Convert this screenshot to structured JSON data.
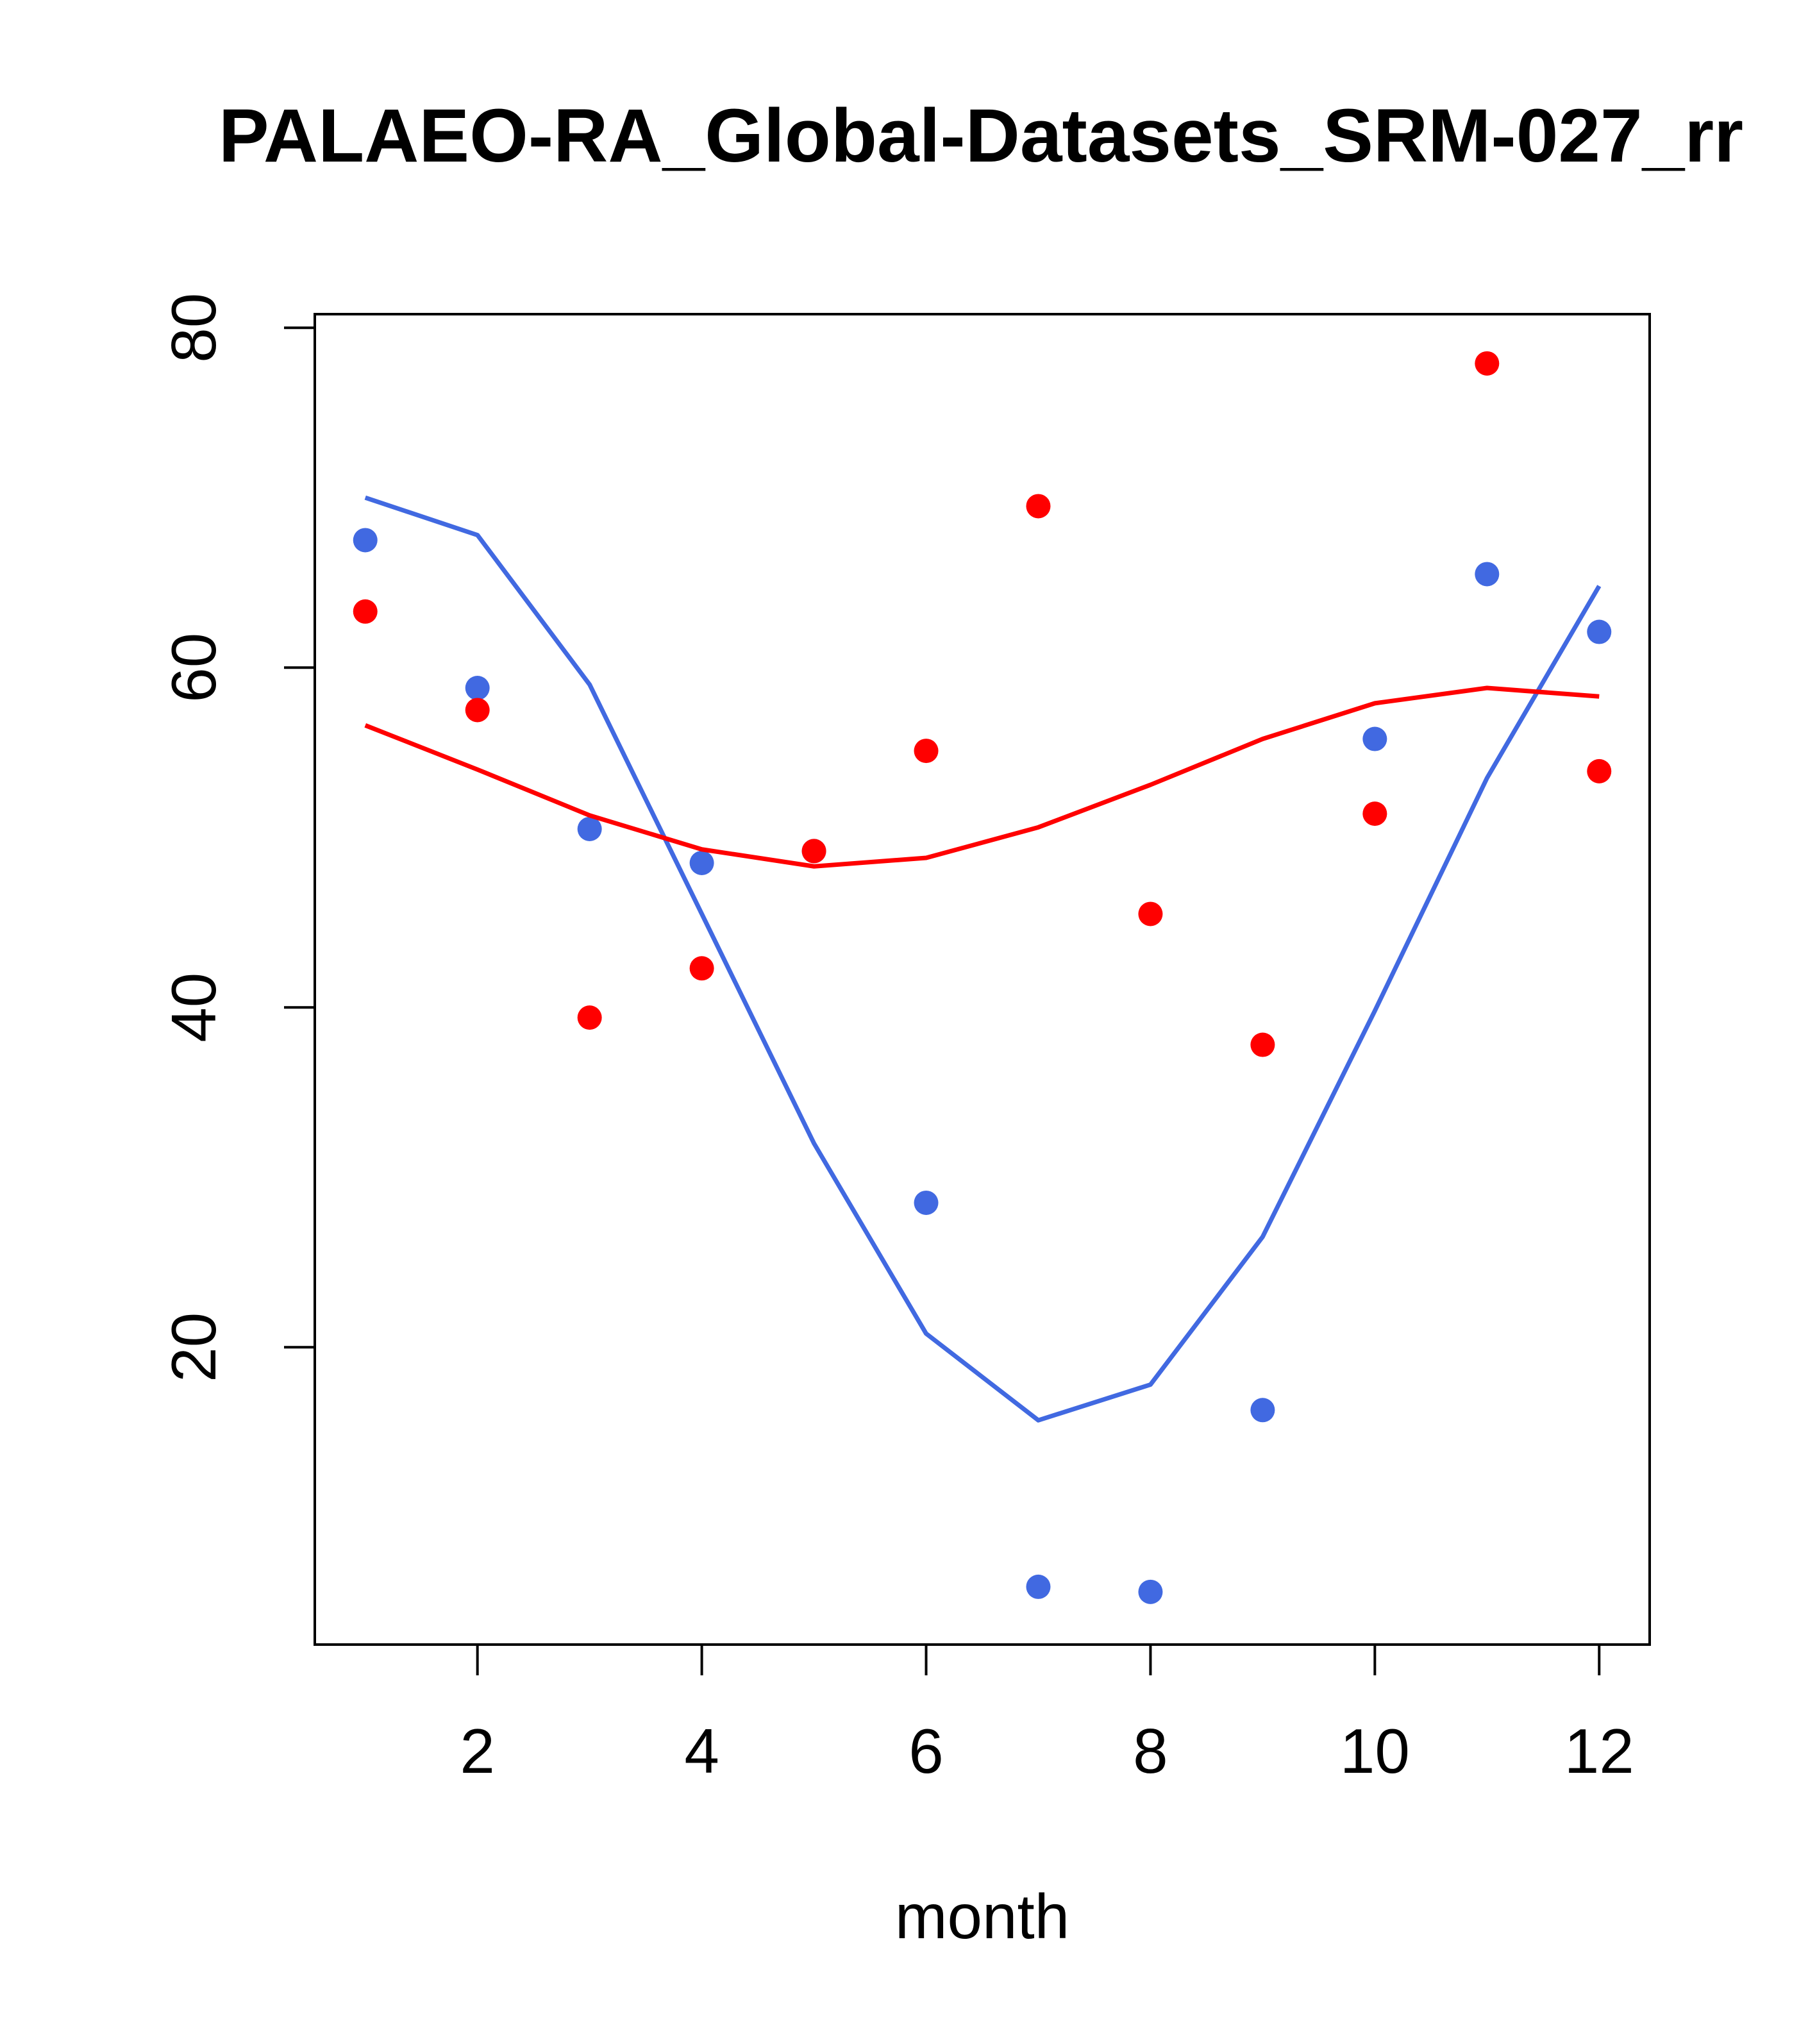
{
  "chart_data": {
    "type": "line",
    "title": "PALAEO-RA_Global-Datasets_SRM-027_rr",
    "xlabel": "month",
    "ylabel": "",
    "xlim": [
      0.55,
      12.45
    ],
    "ylim": [
      2.5,
      80.8
    ],
    "x_ticks": [
      2,
      4,
      6,
      8,
      10,
      12
    ],
    "y_ticks": [
      20,
      40,
      60,
      80
    ],
    "x": [
      1,
      2,
      3,
      4,
      5,
      6,
      7,
      8,
      9,
      10,
      11,
      12
    ],
    "series": [
      {
        "name": "blue points",
        "kind": "points",
        "color": "#4169E1",
        "values": [
          67.5,
          58.8,
          50.5,
          48.5,
          49.2,
          28.5,
          5.9,
          5.6,
          16.3,
          55.8,
          65.5,
          62.1
        ]
      },
      {
        "name": "blue line",
        "kind": "line",
        "color": "#4169E1",
        "values": [
          70.0,
          67.8,
          59.0,
          45.5,
          32.0,
          20.8,
          15.7,
          17.8,
          26.5,
          39.8,
          53.5,
          64.8
        ]
      },
      {
        "name": "red points",
        "kind": "points",
        "color": "#FF0000",
        "values": [
          63.3,
          57.5,
          39.4,
          42.3,
          49.2,
          55.1,
          69.5,
          45.5,
          37.8,
          51.4,
          77.9,
          53.9
        ]
      },
      {
        "name": "red line",
        "kind": "line",
        "color": "#FF0000",
        "values": [
          56.6,
          54.0,
          51.3,
          49.3,
          48.3,
          48.8,
          50.6,
          53.1,
          55.8,
          57.9,
          58.8,
          58.3
        ]
      }
    ]
  }
}
